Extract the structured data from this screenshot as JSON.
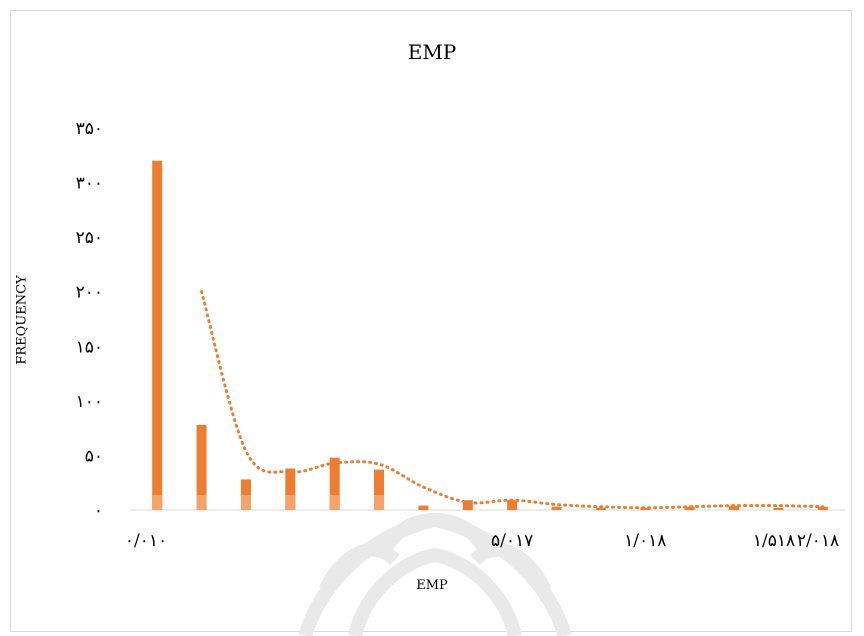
{
  "chart_data": {
    "type": "bar",
    "title": "EMP",
    "xlabel": "EMP",
    "ylabel": "FREQUENCY",
    "ylim": [
      0,
      350
    ],
    "yticks": [
      "۰",
      "۵۰",
      "۱۰۰",
      "۱۵۰",
      "۲۰۰",
      "۲۵۰",
      "۳۰۰",
      "۳۵۰"
    ],
    "xtick_labels": [
      {
        "index": 0,
        "label": "۰/۰۱۰"
      },
      {
        "index": 8,
        "label": "۵/۰۱۷"
      },
      {
        "index": 11,
        "label": "۱/۰۱۸"
      },
      {
        "index": 14,
        "label": "۱/۵۱۸"
      },
      {
        "index": 15,
        "label": "۲/۰۱۸"
      }
    ],
    "values": [
      320,
      78,
      28,
      38,
      48,
      37,
      4,
      9,
      9,
      3,
      2,
      2,
      3,
      4,
      2,
      3
    ],
    "trend_values": [
      null,
      200,
      54,
      35,
      43,
      42,
      21,
      7,
      9,
      5,
      3,
      2,
      3,
      4,
      4,
      3
    ],
    "bar_color": "#ed7d31",
    "bar_light_color": "#f4a468",
    "trend_color": "#ed7d31",
    "grid": false,
    "legend": "none"
  }
}
